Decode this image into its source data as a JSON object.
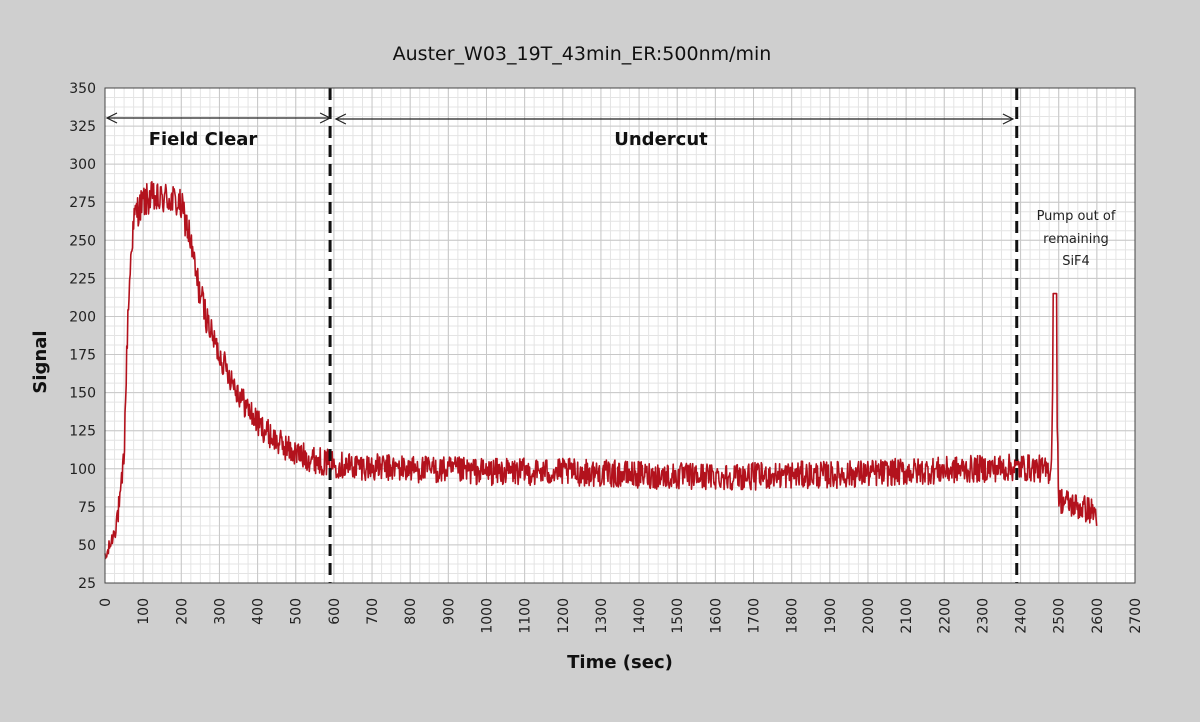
{
  "chart_data": {
    "type": "line",
    "title": "Auster_W03_19T_43min_ER:500nm/min",
    "xlabel": "Time (sec)",
    "ylabel": "Signal",
    "xlim": [
      0,
      2700
    ],
    "ylim": [
      25,
      350
    ],
    "grid": true,
    "x_ticks": [
      0,
      100,
      200,
      300,
      400,
      500,
      600,
      700,
      800,
      900,
      1000,
      1100,
      1200,
      1300,
      1400,
      1500,
      1600,
      1700,
      1800,
      1900,
      2000,
      2100,
      2200,
      2300,
      2400,
      2500,
      2600,
      2700
    ],
    "y_ticks": [
      25,
      50,
      75,
      100,
      125,
      150,
      175,
      200,
      225,
      250,
      275,
      300,
      325,
      350
    ],
    "series": [
      {
        "color": "#b3121d",
        "x": [
          0,
          20,
          40,
          50,
          60,
          70,
          80,
          100,
          120,
          140,
          160,
          180,
          200,
          220,
          240,
          260,
          280,
          300,
          330,
          360,
          400,
          450,
          500,
          550,
          600,
          700,
          800,
          900,
          1000,
          1100,
          1200,
          1300,
          1400,
          1500,
          1600,
          1700,
          1800,
          1900,
          2000,
          2100,
          2200,
          2300,
          2400,
          2450,
          2470,
          2480,
          2490,
          2500,
          2520,
          2550,
          2580,
          2600
        ],
        "y": [
          40,
          55,
          78,
          110,
          200,
          250,
          268,
          275,
          278,
          276,
          278,
          276,
          272,
          255,
          225,
          205,
          188,
          175,
          160,
          145,
          130,
          118,
          110,
          106,
          103,
          101,
          100,
          99,
          98,
          98,
          98,
          97,
          96,
          95,
          95,
          95,
          96,
          96,
          97,
          98,
          99,
          100,
          101,
          100,
          98,
          100,
          215,
          80,
          78,
          75,
          73,
          70
        ]
      }
    ],
    "annotations": [
      {
        "text": "Field Clear",
        "x_start": 0,
        "x_end": 590
      },
      {
        "text": "Undercut",
        "x_start": 600,
        "x_end": 2380
      },
      {
        "text": "Pump out of remaining SiF4",
        "x": 2480,
        "y": 255
      }
    ],
    "vlines": [
      590,
      2390
    ]
  },
  "annotation_lines": {
    "pump_line1": "Pump out of",
    "pump_line2": "remaining",
    "pump_line3": "SiF4"
  }
}
